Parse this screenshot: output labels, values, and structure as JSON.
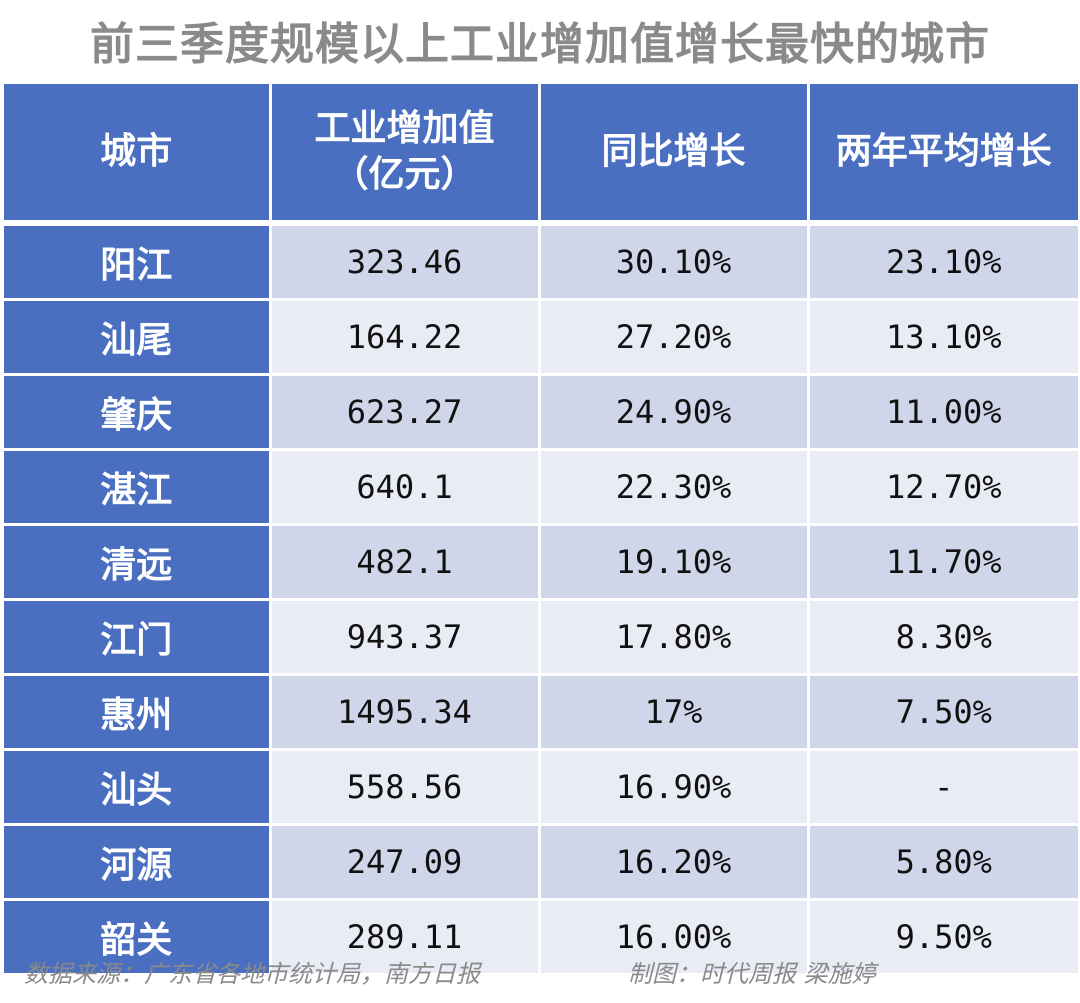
{
  "chart_data": {
    "type": "table",
    "title": "前三季度规模以上工业增加值增长最快的城市",
    "columns": [
      [
        "城市"
      ],
      [
        "工业增加值",
        "（亿元）"
      ],
      [
        "同比增长"
      ],
      [
        "两年平均增长"
      ]
    ],
    "rows": [
      {
        "city": "阳江",
        "value": "323.46",
        "yoy": "30.10%",
        "avg2y": "23.10%"
      },
      {
        "city": "汕尾",
        "value": "164.22",
        "yoy": "27.20%",
        "avg2y": "13.10%"
      },
      {
        "city": "肇庆",
        "value": "623.27",
        "yoy": "24.90%",
        "avg2y": "11.00%"
      },
      {
        "city": "湛江",
        "value": "640.1",
        "yoy": "22.30%",
        "avg2y": "12.70%"
      },
      {
        "city": "清远",
        "value": "482.1",
        "yoy": "19.10%",
        "avg2y": "11.70%"
      },
      {
        "city": "江门",
        "value": "943.37",
        "yoy": "17.80%",
        "avg2y": "8.30%"
      },
      {
        "city": "惠州",
        "value": "1495.34",
        "yoy": "17%",
        "avg2y": "7.50%"
      },
      {
        "city": "汕头",
        "value": "558.56",
        "yoy": "16.90%",
        "avg2y": "-"
      },
      {
        "city": "河源",
        "value": "247.09",
        "yoy": "16.20%",
        "avg2y": "5.80%"
      },
      {
        "city": "韶关",
        "value": "289.11",
        "yoy": "16.00%",
        "avg2y": "9.50%"
      }
    ],
    "colors": {
      "header": "#4a6fc1",
      "row_odd": "#d0d6e9",
      "row_even": "#e9ecf4",
      "title": "#8a8a8a"
    }
  },
  "footer": {
    "source": "数据来源：广东省各地市统计局，南方日报",
    "maker": "制图：时代周报 梁施婷"
  }
}
